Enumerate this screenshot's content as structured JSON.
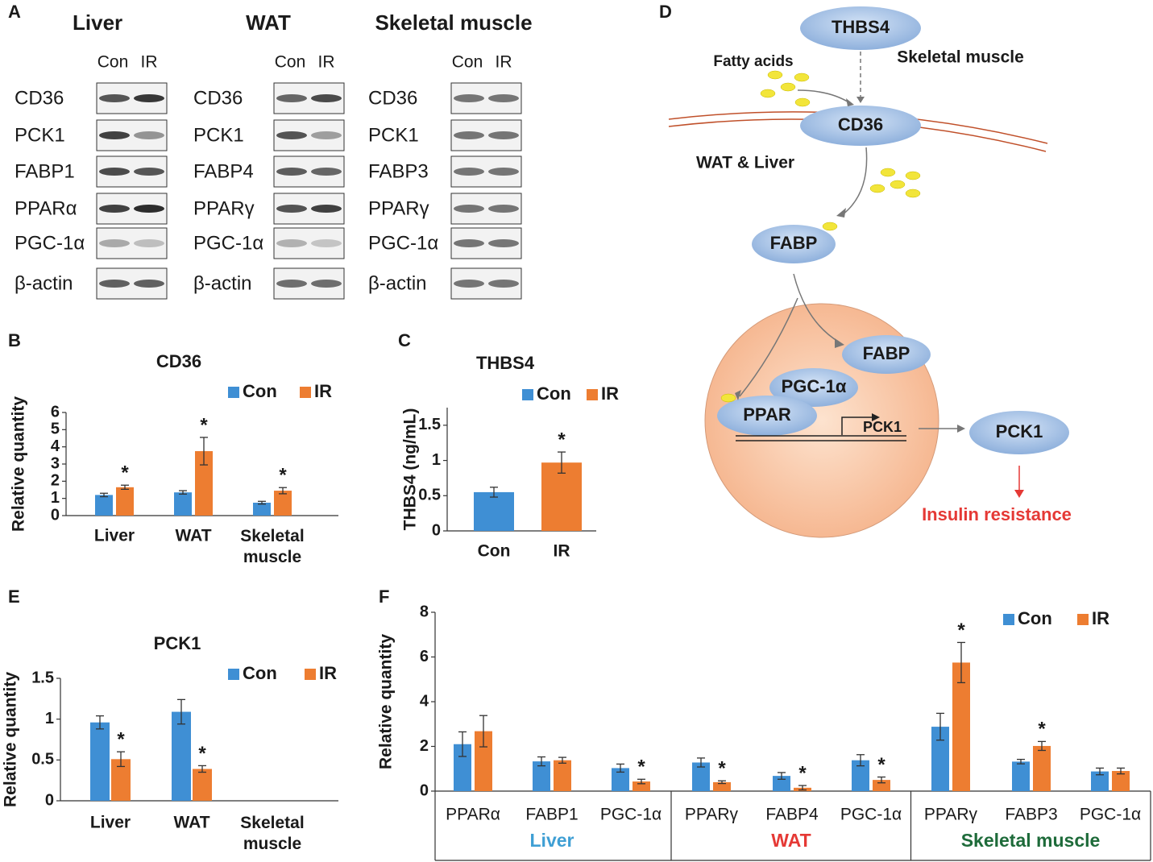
{
  "panel_letters": [
    "A",
    "B",
    "C",
    "D",
    "E",
    "F"
  ],
  "blots": {
    "lanes": [
      "Con",
      "IR"
    ],
    "tissues": [
      {
        "name": "Liver",
        "proteins": [
          "CD36",
          "PCK1",
          "FABP1",
          "PPARα",
          "PGC-1α",
          "β-actin"
        ]
      },
      {
        "name": "WAT",
        "proteins": [
          "CD36",
          "PCK1",
          "FABP4",
          "PPARγ",
          "PGC-1α",
          "β-actin"
        ]
      },
      {
        "name": "Skeletal muscle",
        "proteins": [
          "CD36",
          "PCK1",
          "FABP3",
          "PPARγ",
          "PGC-1α",
          "β-actin"
        ]
      }
    ]
  },
  "diagram": {
    "thbs4": "THBS4",
    "source": "Skeletal muscle",
    "fatty_acids": "Fatty acids",
    "cd36": "CD36",
    "tissue": "WAT & Liver",
    "fabp": "FABP",
    "fabp_nucleus": "FABP",
    "pgc": "PGC-1α",
    "ppar": "PPAR",
    "gene": "PCK1",
    "pck1": "PCK1",
    "outcome": "Insulin resistance"
  },
  "chart_data": [
    {
      "type": "bar",
      "title": "CD36",
      "ylabel": "Relative quantity",
      "categories": [
        "Liver",
        "WAT",
        "Skeletal muscle"
      ],
      "series": [
        {
          "name": "Con",
          "color": "#3f8fd4",
          "values": [
            1.2,
            1.35,
            0.75
          ],
          "errors": [
            0.1,
            0.1,
            0.08
          ]
        },
        {
          "name": "IR",
          "color": "#ed7d31",
          "values": [
            1.65,
            3.75,
            1.45
          ],
          "errors": [
            0.12,
            0.8,
            0.18
          ],
          "labels": [
            "*",
            "*",
            "*"
          ]
        }
      ],
      "ylim": [
        0,
        6
      ],
      "yticks": [
        0,
        1,
        2,
        3,
        4,
        5,
        6
      ]
    },
    {
      "type": "bar",
      "title": "THBS4",
      "ylabel": "THBS4 (ng/mL)",
      "categories": [
        "Con",
        "IR"
      ],
      "legend": [
        "Con",
        "IR"
      ],
      "colors": [
        "#3f8fd4",
        "#ed7d31"
      ],
      "values": [
        0.55,
        0.97
      ],
      "errors": [
        0.07,
        0.15
      ],
      "labels": [
        null,
        "*"
      ],
      "ylim": [
        0,
        1.75
      ],
      "yticks": [
        0,
        0.5,
        1,
        1.5
      ]
    },
    {
      "type": "bar",
      "title": "PCK1",
      "ylabel": "Relative quantity",
      "categories": [
        "Liver",
        "WAT",
        "Skeletal muscle"
      ],
      "series": [
        {
          "name": "Con",
          "color": "#3f8fd4",
          "values": [
            0.96,
            1.09,
            null
          ],
          "errors": [
            0.08,
            0.15,
            null
          ]
        },
        {
          "name": "IR",
          "color": "#ed7d31",
          "values": [
            0.51,
            0.39,
            null
          ],
          "errors": [
            0.09,
            0.04,
            null
          ],
          "labels": [
            "*",
            "*",
            null
          ]
        }
      ],
      "ylim": [
        0,
        1.5
      ],
      "yticks": [
        0,
        0.5,
        1,
        1.5
      ]
    },
    {
      "type": "bar",
      "ylabel": "Relative quantity",
      "groups": [
        {
          "name": "Liver",
          "color": "#3f9fd4",
          "categories": [
            "PPARα",
            "FABP1",
            "PGC-1α"
          ]
        },
        {
          "name": "WAT",
          "color": "#e53935",
          "categories": [
            "PPARγ",
            "FABP4",
            "PGC-1α"
          ]
        },
        {
          "name": "Skeletal muscle",
          "color": "#1e6b3a",
          "categories": [
            "PPARγ",
            "FABP3",
            "PGC-1α"
          ]
        }
      ],
      "series": [
        {
          "name": "Con",
          "color": "#3f8fd4",
          "values": [
            2.1,
            1.33,
            1.03,
            1.28,
            0.68,
            1.38,
            2.88,
            1.32,
            0.88
          ],
          "errors": [
            0.55,
            0.2,
            0.18,
            0.2,
            0.15,
            0.25,
            0.6,
            0.1,
            0.15
          ]
        },
        {
          "name": "IR",
          "color": "#ed7d31",
          "values": [
            2.68,
            1.38,
            0.43,
            0.4,
            0.15,
            0.5,
            5.75,
            2.02,
            0.9
          ],
          "errors": [
            0.7,
            0.13,
            0.1,
            0.06,
            0.1,
            0.13,
            0.9,
            0.2,
            0.13
          ],
          "labels": [
            null,
            null,
            "*",
            "*",
            "*",
            "*",
            "*",
            "*",
            null
          ]
        }
      ],
      "ylim": [
        0,
        8
      ],
      "yticks": [
        0,
        2,
        4,
        6,
        8
      ]
    }
  ]
}
